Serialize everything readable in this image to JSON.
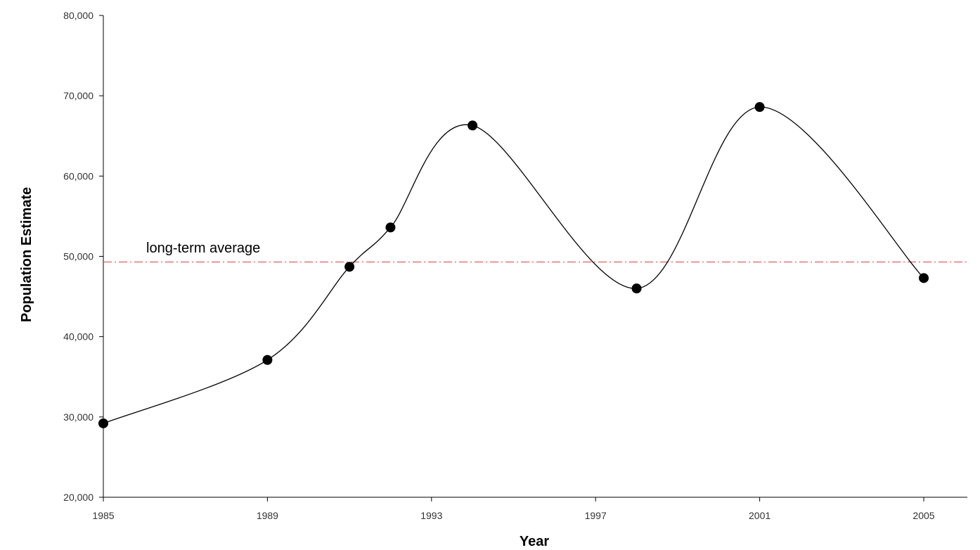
{
  "chart_data": {
    "type": "line",
    "title": "",
    "xlabel": "Year",
    "ylabel": "Population Estimate",
    "xlim": [
      1985,
      2006
    ],
    "ylim": [
      20000,
      80000
    ],
    "x_ticks": [
      1985,
      1989,
      1993,
      1997,
      2001,
      2005
    ],
    "x_tick_labels": [
      "1985",
      "1989",
      "1993",
      "1997",
      "2001",
      "2005"
    ],
    "y_ticks": [
      20000,
      30000,
      40000,
      50000,
      60000,
      70000,
      80000
    ],
    "y_tick_labels": [
      "20,000",
      "30,000",
      "40,000",
      "50,000",
      "60,000",
      "70,000",
      "80,000"
    ],
    "grid": false,
    "series": [
      {
        "x": [
          1985,
          1989,
          1991,
          1992,
          1994,
          1998,
          2001,
          2005
        ],
        "values": [
          29200,
          37100,
          48700,
          53600,
          66300,
          46000,
          68600,
          47300
        ],
        "color": "#000000",
        "smooth": true
      }
    ],
    "reference_line": {
      "label": "long-term average",
      "value": 49300,
      "color": "#e06060"
    }
  }
}
